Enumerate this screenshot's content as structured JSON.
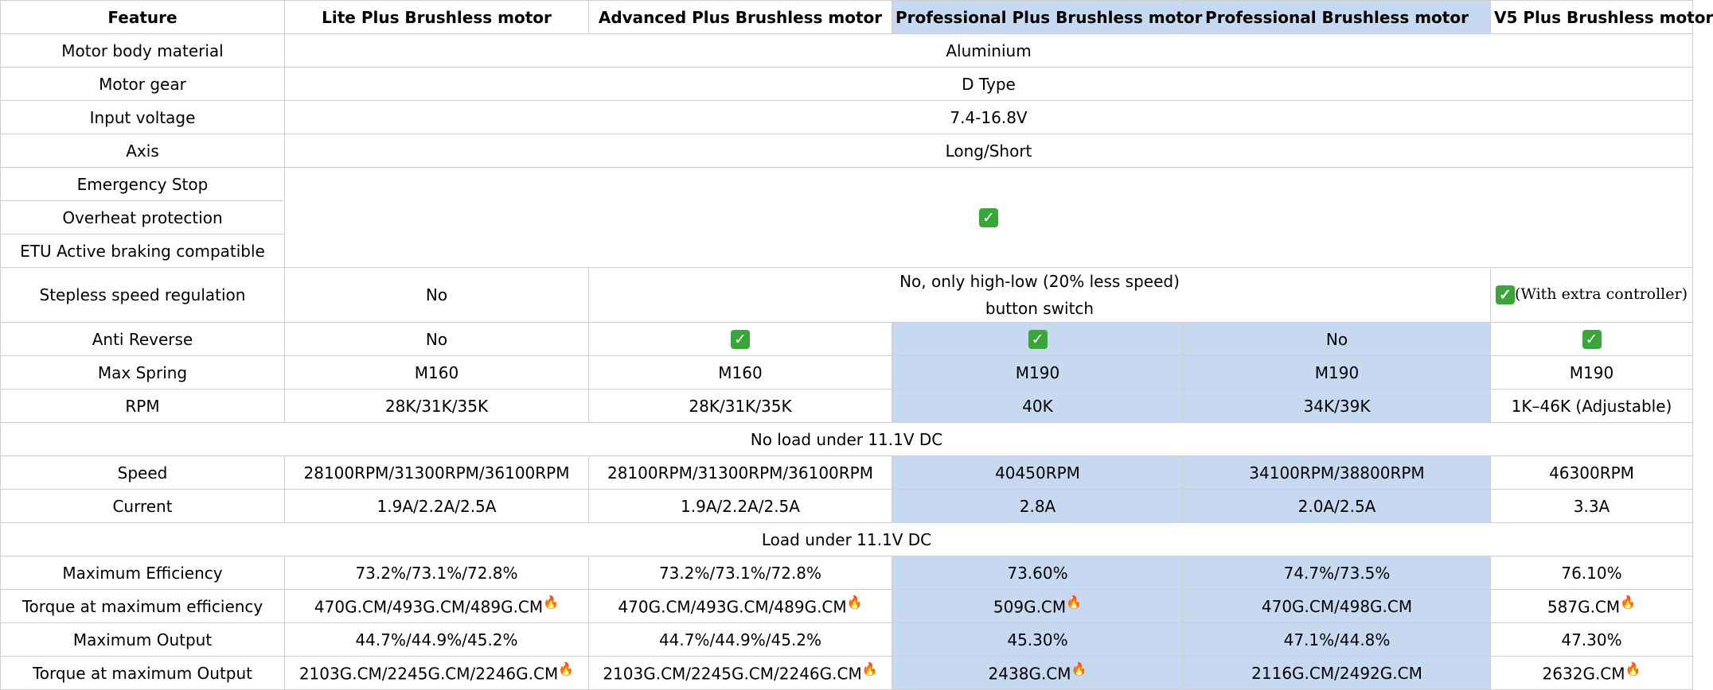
{
  "colors": {
    "highlight": "#c6d9f0",
    "check": "#3aa53a",
    "fire": "#f26a1b"
  },
  "icons": {
    "check": "check-mark-icon",
    "fire": "fire-icon"
  },
  "header": {
    "feature": "Feature",
    "lite": "Lite Plus Brushless motor",
    "advanced": "Advanced Plus Brushless motor",
    "pro_plus": "Professional Plus Brushless motor",
    "pro": "Professional Brushless motor",
    "v5": "V5 Plus Brushless motor"
  },
  "rows": {
    "body_material": {
      "label": "Motor body material",
      "value": "Aluminium"
    },
    "gear": {
      "label": "Motor gear",
      "value": "D Type"
    },
    "voltage": {
      "label": "Input voltage",
      "value": "7.4-16.8V"
    },
    "axis": {
      "label": "Axis",
      "value": "Long/Short"
    },
    "estop": {
      "label": "Emergency Stop"
    },
    "overheat": {
      "label": "Overheat protection"
    },
    "etu": {
      "label": "ETU Active braking compatible"
    },
    "stepless": {
      "label": "Stepless speed regulation",
      "lite": "No",
      "mid_line1": "No, only high-low (20% less speed)",
      "mid_line2": "button switch",
      "v5": "(With extra controller)"
    },
    "anti_reverse": {
      "label": "Anti Reverse",
      "lite": "No",
      "pro": "No"
    },
    "max_spring": {
      "label": "Max Spring",
      "lite": "M160",
      "advanced": "M160",
      "pro_plus": "M190",
      "pro": "M190",
      "v5": "M190"
    },
    "rpm": {
      "label": "RPM",
      "lite": "28K/31K/35K",
      "advanced": "28K/31K/35K",
      "pro_plus": "40K",
      "pro": "34K/39K",
      "v5": "1K–46K (Adjustable)"
    },
    "no_load_section": "No load under 11.1V DC",
    "speed": {
      "label": "Speed",
      "lite": "28100RPM/31300RPM/36100RPM",
      "advanced": "28100RPM/31300RPM/36100RPM",
      "pro_plus": "40450RPM",
      "pro": "34100RPM/38800RPM",
      "v5": "46300RPM"
    },
    "current": {
      "label": "Current",
      "lite": "1.9A/2.2A/2.5A",
      "advanced": "1.9A/2.2A/2.5A",
      "pro_plus": "2.8A",
      "pro": "2.0A/2.5A",
      "v5": "3.3A"
    },
    "load_section": "Load under 11.1V DC",
    "max_eff": {
      "label": "Maximum Efficiency",
      "lite": "73.2%/73.1%/72.8%",
      "advanced": "73.2%/73.1%/72.8%",
      "pro_plus": "73.60%",
      "pro": "74.7%/73.5%",
      "v5": "76.10%"
    },
    "torque_eff": {
      "label": "Torque at maximum efficiency",
      "lite": "470G.CM/493G.CM/489G.CM",
      "advanced": "470G.CM/493G.CM/489G.CM",
      "pro_plus": "509G.CM",
      "pro": "470G.CM/498G.CM",
      "v5": "587G.CM"
    },
    "max_output": {
      "label": "Maximum Output",
      "lite": "44.7%/44.9%/45.2%",
      "advanced": "44.7%/44.9%/45.2%",
      "pro_plus": "45.30%",
      "pro": "47.1%/44.8%",
      "v5": "47.30%"
    },
    "torque_output": {
      "label": "Torque at maximum Output",
      "lite": "2103G.CM/2245G.CM/2246G.CM",
      "advanced": "2103G.CM/2245G.CM/2246G.CM",
      "pro_plus": "2438G.CM",
      "pro": "2116G.CM/2492G.CM",
      "v5": "2632G.CM"
    }
  }
}
